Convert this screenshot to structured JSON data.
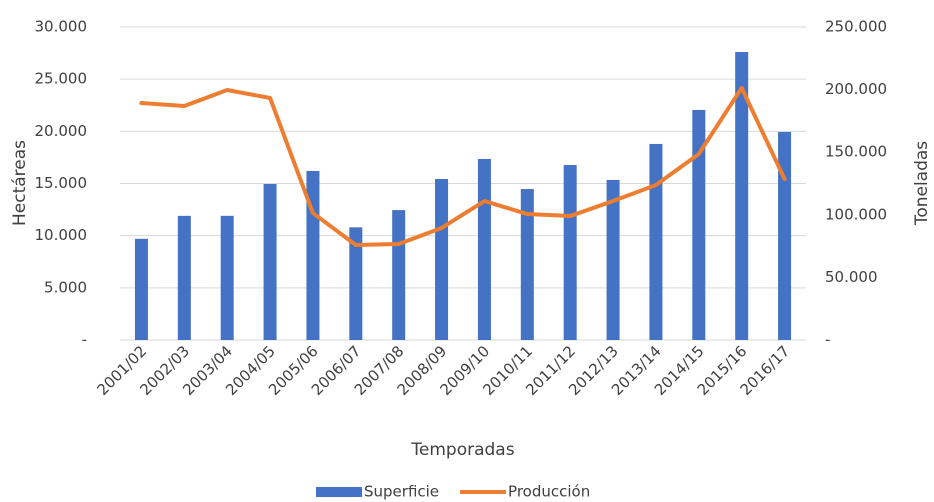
{
  "chart_data": {
    "type": "bar-line",
    "categories": [
      "2001/02",
      "2002/03",
      "2003/04",
      "2004/05",
      "2005/06",
      "2006/07",
      "2007/08",
      "2008/09",
      "2009/10",
      "2010/11",
      "2011/12",
      "2012/13",
      "2013/14",
      "2014/15",
      "2015/16",
      "2016/17"
    ],
    "series": [
      {
        "name": "Superficie",
        "type": "bar",
        "color": "#4472c4",
        "values": [
          9700,
          11900,
          11900,
          14950,
          16200,
          10800,
          12450,
          15430,
          17350,
          14470,
          16770,
          15340,
          18790,
          22050,
          27600,
          19940
        ]
      },
      {
        "name": "Producción",
        "type": "line",
        "axis": "y2",
        "color": "#ed7d31",
        "values": [
          189300,
          186900,
          199700,
          193300,
          101400,
          75900,
          76700,
          89500,
          111000,
          100600,
          99000,
          111000,
          123800,
          148600,
          201300,
          128600
        ]
      }
    ],
    "xlabel": "Temporadas",
    "ylabel": "Hectáreas",
    "y2label": "Toneladas",
    "ylim": [
      0,
      30000
    ],
    "yticks": [
      {
        "value": 0,
        "label": "-"
      },
      {
        "value": 5000,
        "label": "5.000"
      },
      {
        "value": 10000,
        "label": "10.000"
      },
      {
        "value": 15000,
        "label": "15.000"
      },
      {
        "value": 20000,
        "label": "20.000"
      },
      {
        "value": 25000,
        "label": "25.000"
      },
      {
        "value": 30000,
        "label": "30.000"
      }
    ],
    "y2lim": [
      0,
      250000
    ],
    "y2ticks": [
      {
        "value": 0,
        "label": "-"
      },
      {
        "value": 50000,
        "label": "50.000"
      },
      {
        "value": 100000,
        "label": "100.000"
      },
      {
        "value": 150000,
        "label": "150.000"
      },
      {
        "value": 200000,
        "label": "200.000"
      },
      {
        "value": 250000,
        "label": "250.000"
      }
    ],
    "grid": true,
    "legend": "bottom"
  }
}
